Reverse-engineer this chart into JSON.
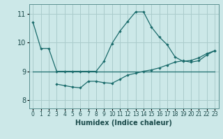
{
  "xlabel": "Humidex (Indice chaleur)",
  "ylabel": "",
  "background_color": "#cce8e8",
  "grid_color": "#aacccc",
  "line_color": "#1a6b6b",
  "xlim": [
    -0.5,
    23.5
  ],
  "ylim": [
    7.7,
    11.35
  ],
  "yticks": [
    8,
    9,
    10,
    11
  ],
  "xticks": [
    0,
    1,
    2,
    3,
    4,
    5,
    6,
    7,
    8,
    9,
    10,
    11,
    12,
    13,
    14,
    15,
    16,
    17,
    18,
    19,
    20,
    21,
    22,
    23
  ],
  "line1_x": [
    0,
    1,
    2,
    3,
    4,
    5,
    6,
    7,
    8,
    9,
    10,
    11,
    12,
    13,
    14,
    15,
    16,
    17,
    18,
    19,
    20,
    21,
    22,
    23
  ],
  "line1_y": [
    10.72,
    9.8,
    9.8,
    9.0,
    9.0,
    9.0,
    9.0,
    9.0,
    9.0,
    9.35,
    9.97,
    10.4,
    10.75,
    11.08,
    11.08,
    10.55,
    10.2,
    9.93,
    9.5,
    9.35,
    9.38,
    9.47,
    9.62,
    9.72
  ],
  "line2_x": [
    0,
    1,
    2,
    3,
    4,
    5,
    6,
    7,
    8,
    9,
    10,
    11,
    12,
    13,
    14,
    15,
    16,
    17,
    18,
    19,
    20,
    21,
    22,
    23
  ],
  "line2_y": [
    9.0,
    9.0,
    9.0,
    9.0,
    9.0,
    9.0,
    9.0,
    9.0,
    9.0,
    9.0,
    9.0,
    9.0,
    9.0,
    9.0,
    9.0,
    9.0,
    9.0,
    9.0,
    9.0,
    9.0,
    9.0,
    9.0,
    9.0,
    9.0
  ],
  "line3_x": [
    3,
    4,
    5,
    6,
    7,
    8,
    9,
    10,
    11,
    12,
    13,
    14,
    15,
    16,
    17,
    18,
    19,
    20,
    21,
    22,
    23
  ],
  "line3_y": [
    8.55,
    8.5,
    8.45,
    8.42,
    8.65,
    8.65,
    8.6,
    8.58,
    8.72,
    8.87,
    8.93,
    9.0,
    9.05,
    9.12,
    9.22,
    9.32,
    9.37,
    9.32,
    9.37,
    9.57,
    9.72
  ]
}
